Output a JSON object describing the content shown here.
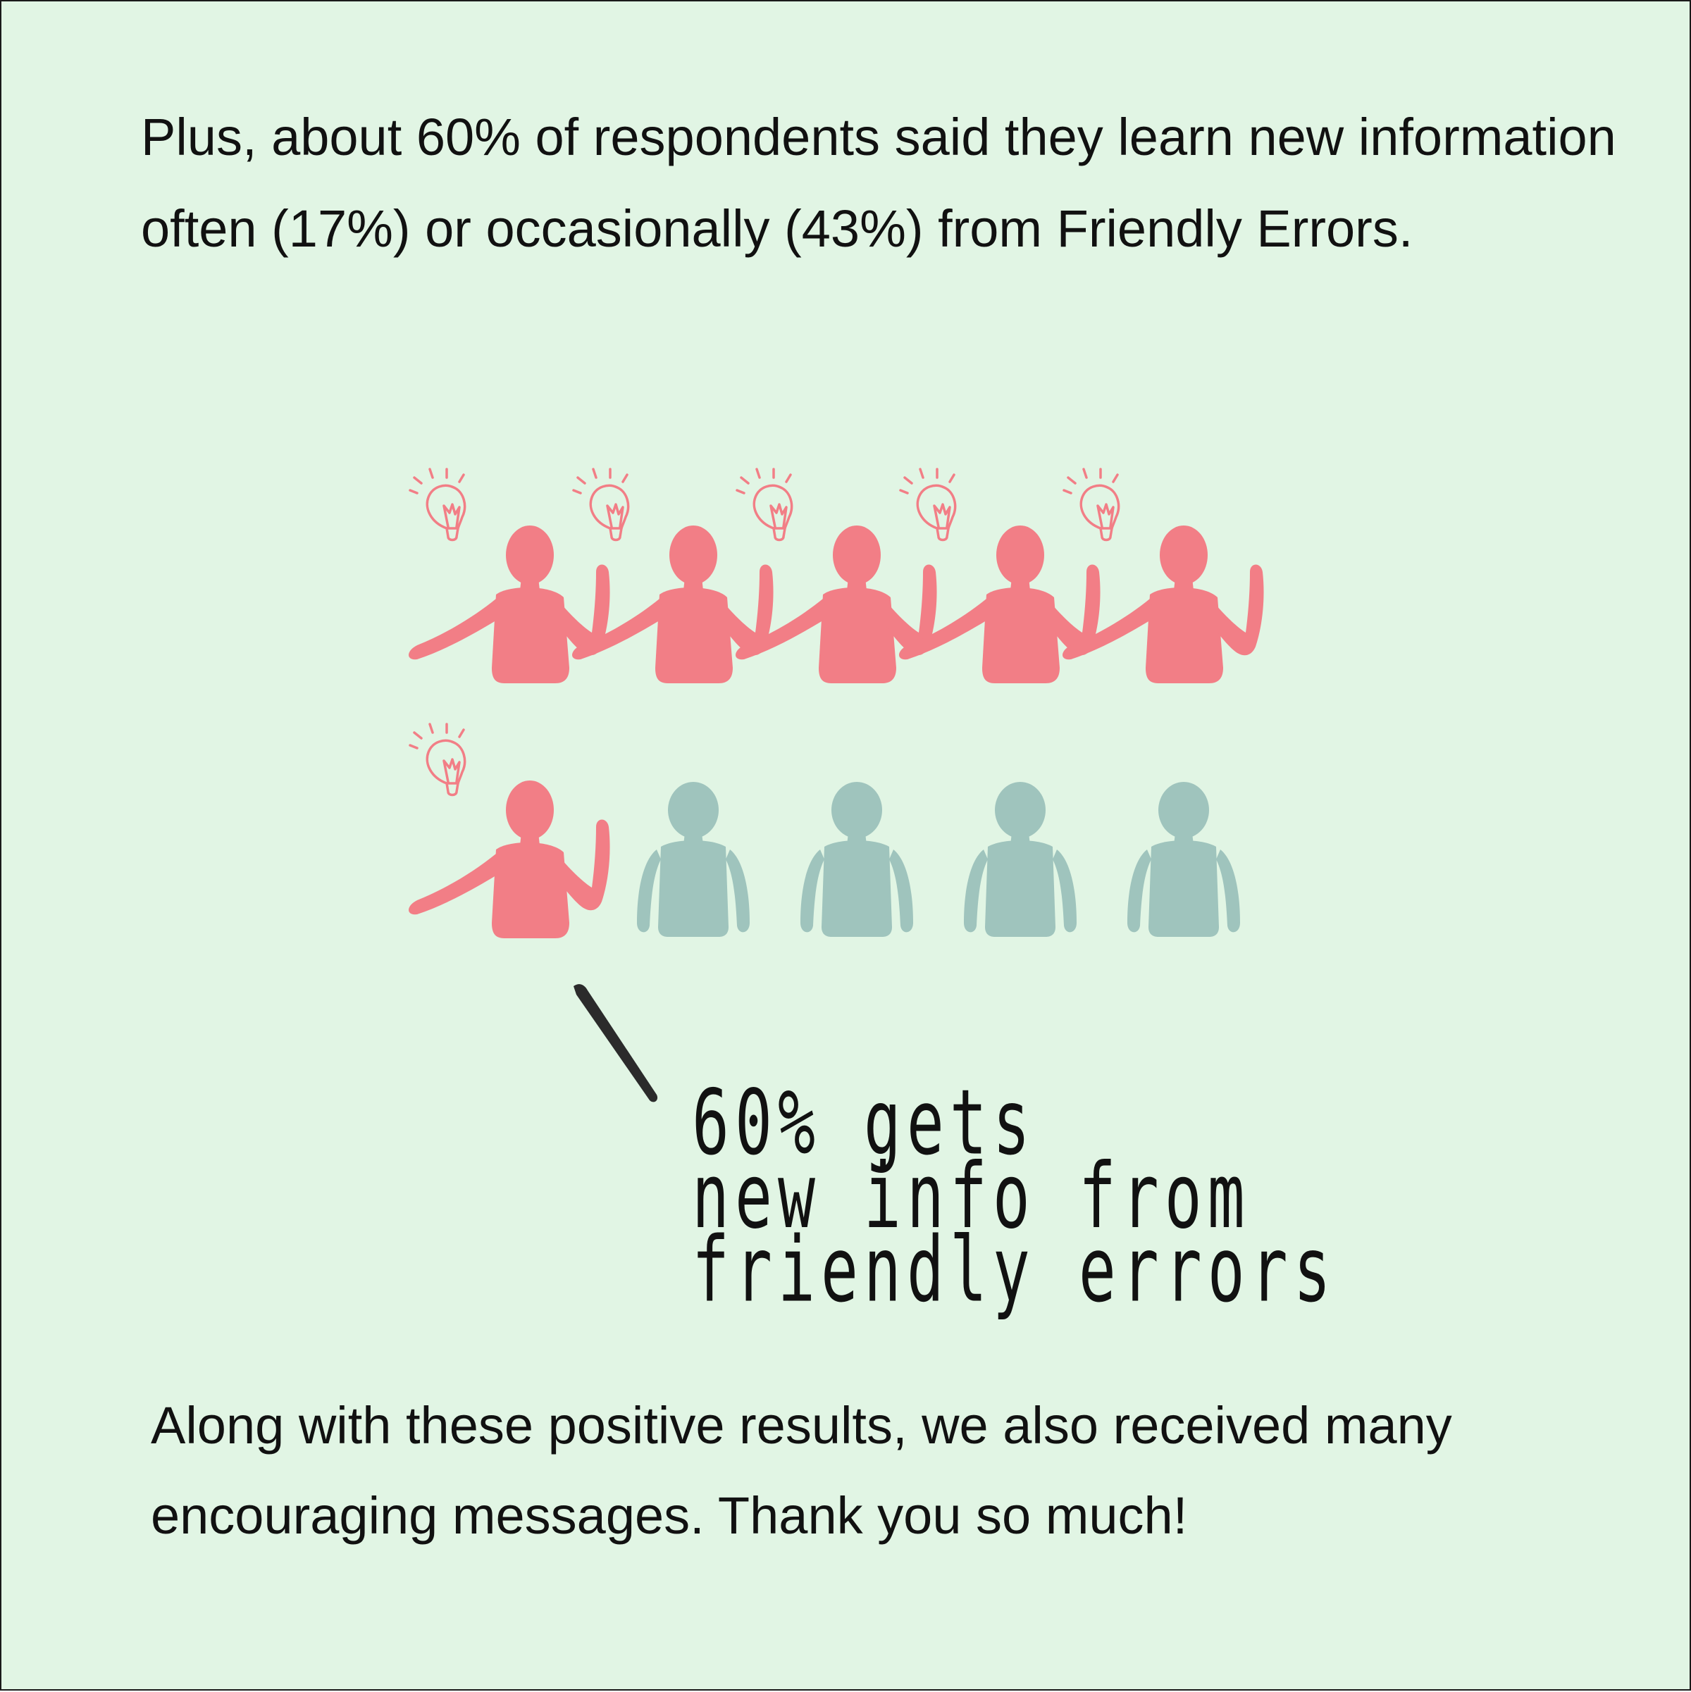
{
  "intro_text": "Plus, about 60% of respondents said they learn new information often (17%) or occasionally (43%) from Friendly Errors.",
  "pictogram": {
    "total_people": 10,
    "highlighted_people": 6,
    "highlight_icon": "lightbulb-icon",
    "person_icon": "person-icon"
  },
  "callout": {
    "lines": [
      "60% gets",
      "new info from",
      "friendly errors"
    ]
  },
  "outro_text": "Along with these positive results, we also received many encouraging messages. Thank you so much!",
  "colors": {
    "background": "#e1f5e4",
    "highlight": "#f27e86",
    "muted": "#9fc4bd",
    "ink": "#111111"
  }
}
